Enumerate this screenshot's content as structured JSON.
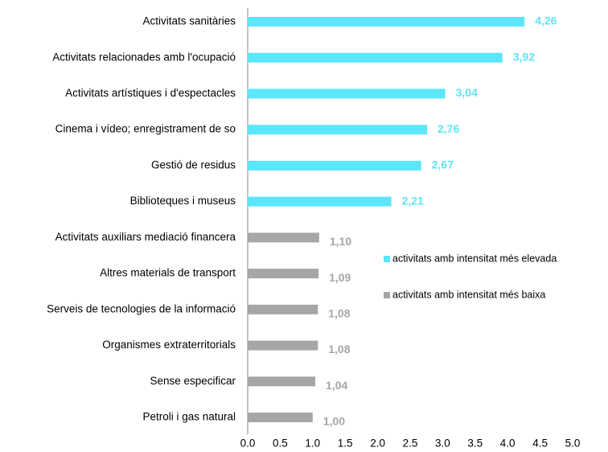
{
  "chart_data": {
    "type": "bar",
    "orientation": "horizontal",
    "categories": [
      "Activitats sanitàries",
      "Activitats relacionades amb l'ocupació",
      "Activitats artístiques i d'espectacles",
      "Cinema i vídeo; enregistrament de so",
      "Gestió de residus",
      "Biblioteques i museus",
      "Activitats auxiliars mediació financera",
      "Altres materials de transport",
      "Serveis de tecnologies de la informació",
      "Organismes extraterritorials",
      "Sense especificar",
      "Petroli i gas natural"
    ],
    "series": [
      {
        "name": "activitats amb intensitat més elevada",
        "color": "#5ce5fb",
        "values": [
          4.26,
          3.92,
          3.04,
          2.76,
          2.67,
          2.21,
          null,
          null,
          null,
          null,
          null,
          null
        ],
        "value_labels": [
          "4,26",
          "3,92",
          "3,04",
          "2,76",
          "2,67",
          "2,21",
          null,
          null,
          null,
          null,
          null,
          null
        ]
      },
      {
        "name": "activitats amb intensitat més baixa",
        "color": "#a6a6a6",
        "values": [
          null,
          null,
          null,
          null,
          null,
          null,
          1.1,
          1.09,
          1.08,
          1.08,
          1.04,
          1.0
        ],
        "value_labels": [
          null,
          null,
          null,
          null,
          null,
          null,
          "1,10",
          "1,09",
          "1,08",
          "1,08",
          "1,04",
          "1,00"
        ]
      }
    ],
    "xlim": [
      0,
      5
    ],
    "xticks": [
      {
        "value": 0,
        "label": "0.0"
      },
      {
        "value": 0.5,
        "label": "0.5"
      },
      {
        "value": 1,
        "label": "1.0"
      },
      {
        "value": 1.5,
        "label": "1.5"
      },
      {
        "value": 2,
        "label": "2.0"
      },
      {
        "value": 2.5,
        "label": "2.5"
      },
      {
        "value": 3,
        "label": "3.0"
      },
      {
        "value": 3.5,
        "label": "3.5"
      },
      {
        "value": 4,
        "label": "4.0"
      },
      {
        "value": 4.5,
        "label": "4.5"
      },
      {
        "value": 5,
        "label": "5.0"
      }
    ],
    "grid": false,
    "legend": "right"
  }
}
